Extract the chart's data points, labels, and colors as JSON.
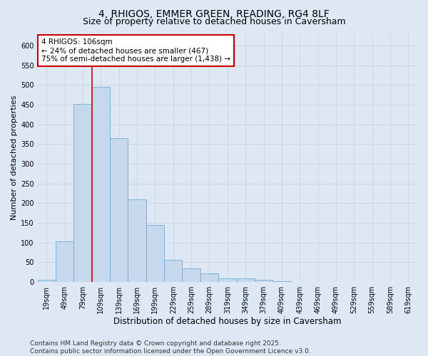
{
  "title1": "4, RHIGOS, EMMER GREEN, READING, RG4 8LF",
  "title2": "Size of property relative to detached houses in Caversham",
  "xlabel": "Distribution of detached houses by size in Caversham",
  "ylabel": "Number of detached properties",
  "categories": [
    "19sqm",
    "49sqm",
    "79sqm",
    "109sqm",
    "139sqm",
    "169sqm",
    "199sqm",
    "229sqm",
    "259sqm",
    "289sqm",
    "319sqm",
    "349sqm",
    "379sqm",
    "409sqm",
    "439sqm",
    "469sqm",
    "499sqm",
    "529sqm",
    "559sqm",
    "589sqm",
    "619sqm"
  ],
  "values": [
    5,
    103,
    452,
    496,
    365,
    210,
    144,
    57,
    34,
    21,
    10,
    10,
    6,
    2,
    1,
    0,
    0,
    0,
    0,
    0,
    1
  ],
  "bar_color": "#c5d8ec",
  "bar_edge_color": "#6aaed6",
  "grid_color": "#c8d4e0",
  "background_color": "#dde8f4",
  "vline_color": "#cc0000",
  "vline_x_index": 2.5,
  "annotation_text": "4 RHIGOS: 106sqm\n← 24% of detached houses are smaller (467)\n75% of semi-detached houses are larger (1,438) →",
  "annotation_box_color": "#ffffff",
  "annotation_box_edge": "#cc0000",
  "ylim": [
    0,
    630
  ],
  "yticks": [
    0,
    50,
    100,
    150,
    200,
    250,
    300,
    350,
    400,
    450,
    500,
    550,
    600
  ],
  "footer": "Contains HM Land Registry data © Crown copyright and database right 2025.\nContains public sector information licensed under the Open Government Licence v3.0.",
  "title1_fontsize": 10,
  "title2_fontsize": 9,
  "xlabel_fontsize": 8.5,
  "ylabel_fontsize": 8,
  "tick_fontsize": 7,
  "annotation_fontsize": 7.5,
  "footer_fontsize": 6.5
}
